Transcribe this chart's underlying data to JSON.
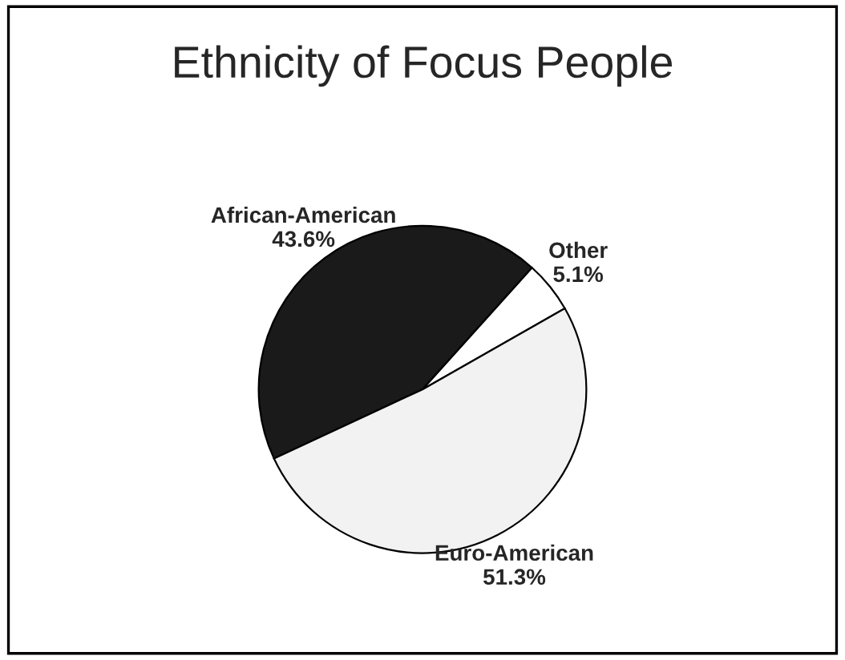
{
  "chart_data": {
    "type": "pie",
    "title": "Ethnicity of Focus People",
    "categories": [
      "African-American",
      "Other",
      "Euro-American"
    ],
    "values": [
      43.6,
      5.1,
      51.3
    ],
    "colors": [
      "#1a1a1a",
      "#ffffff",
      "#f2f2f2"
    ],
    "value_labels": [
      "43.6%",
      "5.1%",
      "51.3%"
    ]
  }
}
